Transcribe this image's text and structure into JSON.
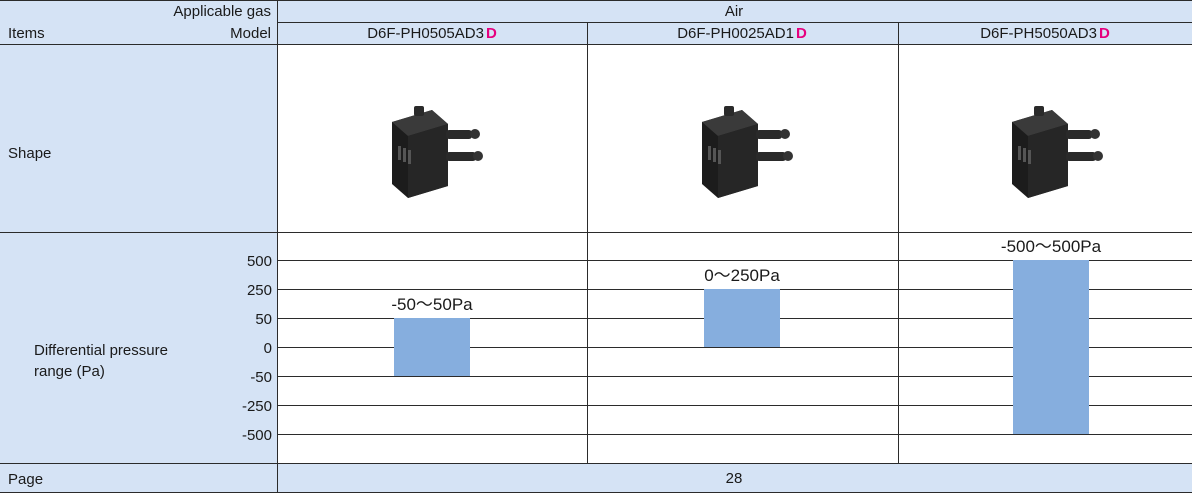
{
  "header": {
    "applicable_gas_label": "Applicable gas",
    "gas_value": "Air",
    "items_label": "Items",
    "model_label": "Model"
  },
  "models": [
    {
      "name": "D6F-PH0505AD3",
      "brand_mark": "D",
      "range_label": "-50～50Pa",
      "range": [
        -50,
        50
      ]
    },
    {
      "name": "D6F-PH0025AD1",
      "brand_mark": "D",
      "range_label": "0～250Pa",
      "range": [
        0,
        250
      ]
    },
    {
      "name": "D6F-PH5050AD3",
      "brand_mark": "D",
      "range_label": "-500～500Pa",
      "range": [
        -500,
        500
      ]
    }
  ],
  "rows": {
    "shape_label": "Shape",
    "pressure_label_line1": "Differential pressure",
    "pressure_label_line2": "range (Pa)",
    "page_label": "Page",
    "page_value": "28"
  },
  "pressure_scale": {
    "ticks": [
      "500",
      "250",
      "50",
      "0",
      "-50",
      "-250",
      "-500"
    ],
    "bar_color": "#86aede"
  },
  "colors": {
    "header_bg": "#d5e3f5",
    "brand_accent": "#e6007e"
  }
}
